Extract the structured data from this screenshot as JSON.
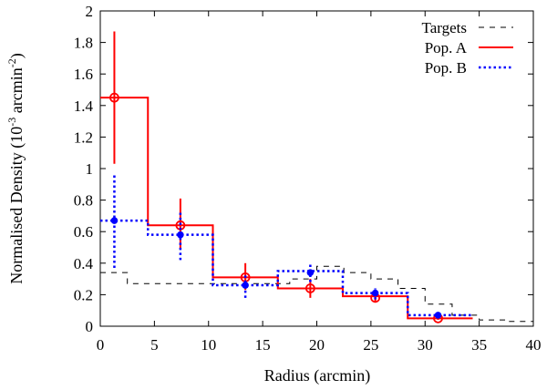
{
  "chart_data": {
    "type": "line",
    "xlabel": "Radius (arcmin)",
    "ylabel_main": "Normalised Density (10",
    "ylabel_exp1": "-3",
    "ylabel_mid": " arcmin",
    "ylabel_exp2": "-2",
    "ylabel_end": ")",
    "xlim": [
      0,
      40
    ],
    "ylim": [
      0,
      2
    ],
    "xticks": [
      0,
      5,
      10,
      15,
      20,
      25,
      30,
      35,
      40
    ],
    "yticks": [
      0,
      0.2,
      0.4,
      0.6,
      0.8,
      1,
      1.2,
      1.4,
      1.6,
      1.8,
      2
    ],
    "xtick_labels": [
      "0",
      "5",
      "10",
      "15",
      "20",
      "25",
      "30",
      "35",
      "40"
    ],
    "ytick_labels": [
      "0",
      "0.2",
      "0.4",
      "0.6",
      "0.8",
      "1",
      "1.2",
      "1.4",
      "1.6",
      "1.8",
      "2"
    ],
    "legend_position": "top-right",
    "series": [
      {
        "name": "Targets",
        "color": "#000000",
        "style": "dashed-step",
        "edges": [
          0,
          2.5,
          5,
          7.5,
          10,
          12.5,
          15,
          17.5,
          20,
          22.5,
          25,
          27.5,
          30,
          32.5,
          35,
          37.5,
          40
        ],
        "values": [
          0.34,
          0.27,
          0.27,
          0.27,
          0.27,
          0.27,
          0.27,
          0.3,
          0.38,
          0.34,
          0.3,
          0.24,
          0.14,
          0.07,
          0.04,
          0.03
        ]
      },
      {
        "name": "Pop. A",
        "color": "#ff0000",
        "style": "solid-step",
        "edges": [
          0,
          4.4,
          10.4,
          16.4,
          22.4,
          28.4,
          34.4
        ],
        "values": [
          1.45,
          0.64,
          0.31,
          0.24,
          0.19,
          0.05
        ],
        "points_x": [
          1.3,
          7.4,
          13.4,
          19.4,
          25.4,
          31.2
        ],
        "points_y": [
          1.45,
          0.64,
          0.31,
          0.24,
          0.18,
          0.05
        ],
        "err_low": [
          1.03,
          0.49,
          0.23,
          0.18,
          0.15,
          0.04
        ],
        "err_high": [
          1.87,
          0.81,
          0.4,
          0.3,
          0.22,
          0.06
        ]
      },
      {
        "name": "Pop. B",
        "color": "#0000ff",
        "style": "dotted-step",
        "edges": [
          0,
          4.4,
          10.4,
          16.4,
          22.4,
          28.4,
          34.4
        ],
        "values": [
          0.67,
          0.58,
          0.26,
          0.35,
          0.21,
          0.07
        ],
        "points_x": [
          1.3,
          7.4,
          13.4,
          19.4,
          25.4,
          31.2
        ],
        "points_y": [
          0.67,
          0.58,
          0.26,
          0.34,
          0.21,
          0.07
        ],
        "err_low": [
          0.37,
          0.42,
          0.18,
          0.28,
          0.17,
          0.06
        ],
        "err_high": [
          0.96,
          0.72,
          0.33,
          0.4,
          0.24,
          0.08
        ]
      }
    ]
  }
}
